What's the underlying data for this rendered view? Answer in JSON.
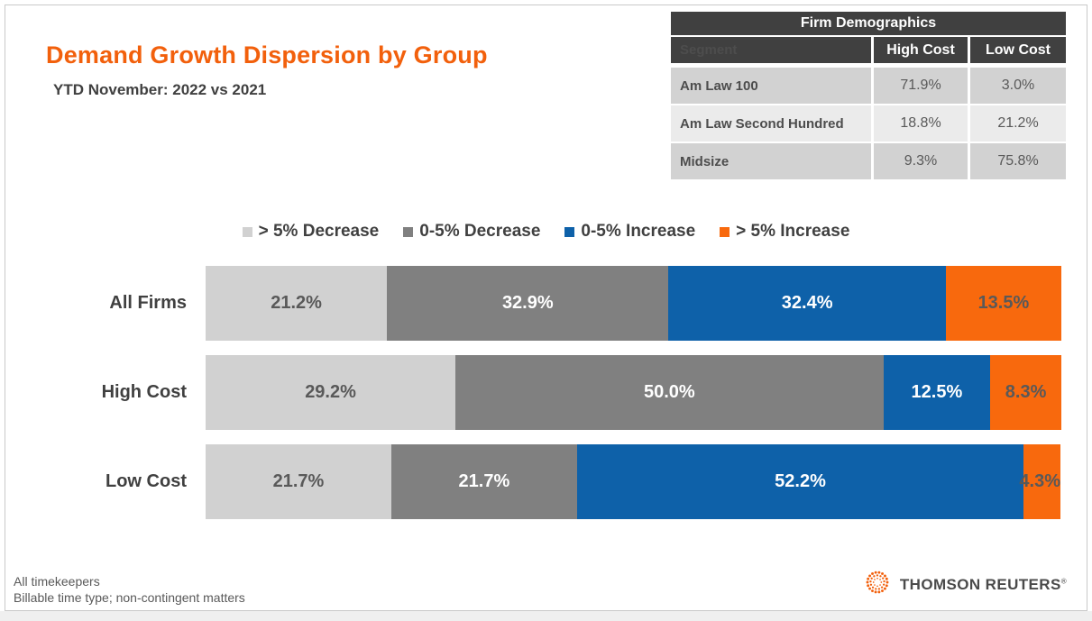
{
  "title": "Demand Growth Dispersion by Group",
  "subtitle": "YTD November: 2022 vs 2021",
  "colors": {
    "title_orange": "#F2600C",
    "dark_gray": "#404040",
    "table_row_dark": "#D2D2D2",
    "table_row_light": "#EBEBEB"
  },
  "demographics_table": {
    "title": "Firm Demographics",
    "columns": [
      "Segment",
      "High Cost",
      "Low Cost"
    ],
    "rows": [
      {
        "segment": "Am Law 100",
        "high_cost": "71.9%",
        "low_cost": "3.0%"
      },
      {
        "segment": "Am Law Second Hundred",
        "high_cost": "18.8%",
        "low_cost": "21.2%"
      },
      {
        "segment": "Midsize",
        "high_cost": "9.3%",
        "low_cost": "75.8%"
      }
    ]
  },
  "chart_data": {
    "type": "bar",
    "orientation": "horizontal-stacked",
    "title": "Demand Growth Dispersion by Group",
    "subtitle": "YTD November: 2022 vs 2021",
    "categories": [
      "All Firms",
      "High Cost",
      "Low Cost"
    ],
    "series": [
      {
        "name": "> 5% Decrease",
        "color": "#D1D1D1",
        "label_color": "#595959",
        "values": [
          21.2,
          29.2,
          21.7
        ]
      },
      {
        "name": "0-5% Decrease",
        "color": "#808080",
        "label_color": "#FFFFFF",
        "values": [
          32.9,
          50.0,
          21.7
        ]
      },
      {
        "name": "0-5% Increase",
        "color": "#0E61A9",
        "label_color": "#FFFFFF",
        "values": [
          32.4,
          12.5,
          52.2
        ]
      },
      {
        "name": "> 5% Increase",
        "color": "#F8690D",
        "label_color": "#595959",
        "values": [
          13.5,
          8.3,
          4.3
        ]
      }
    ],
    "value_suffix": "%",
    "value_decimals": 1,
    "xlim": [
      0,
      100
    ],
    "grid": false,
    "legend_position": "top"
  },
  "footnotes": [
    "All timekeepers",
    "Billable time type; non-contingent matters"
  ],
  "logo": {
    "text": "THOMSON REUTERS",
    "registered_mark": "®",
    "mark_color": "#F2600C"
  }
}
